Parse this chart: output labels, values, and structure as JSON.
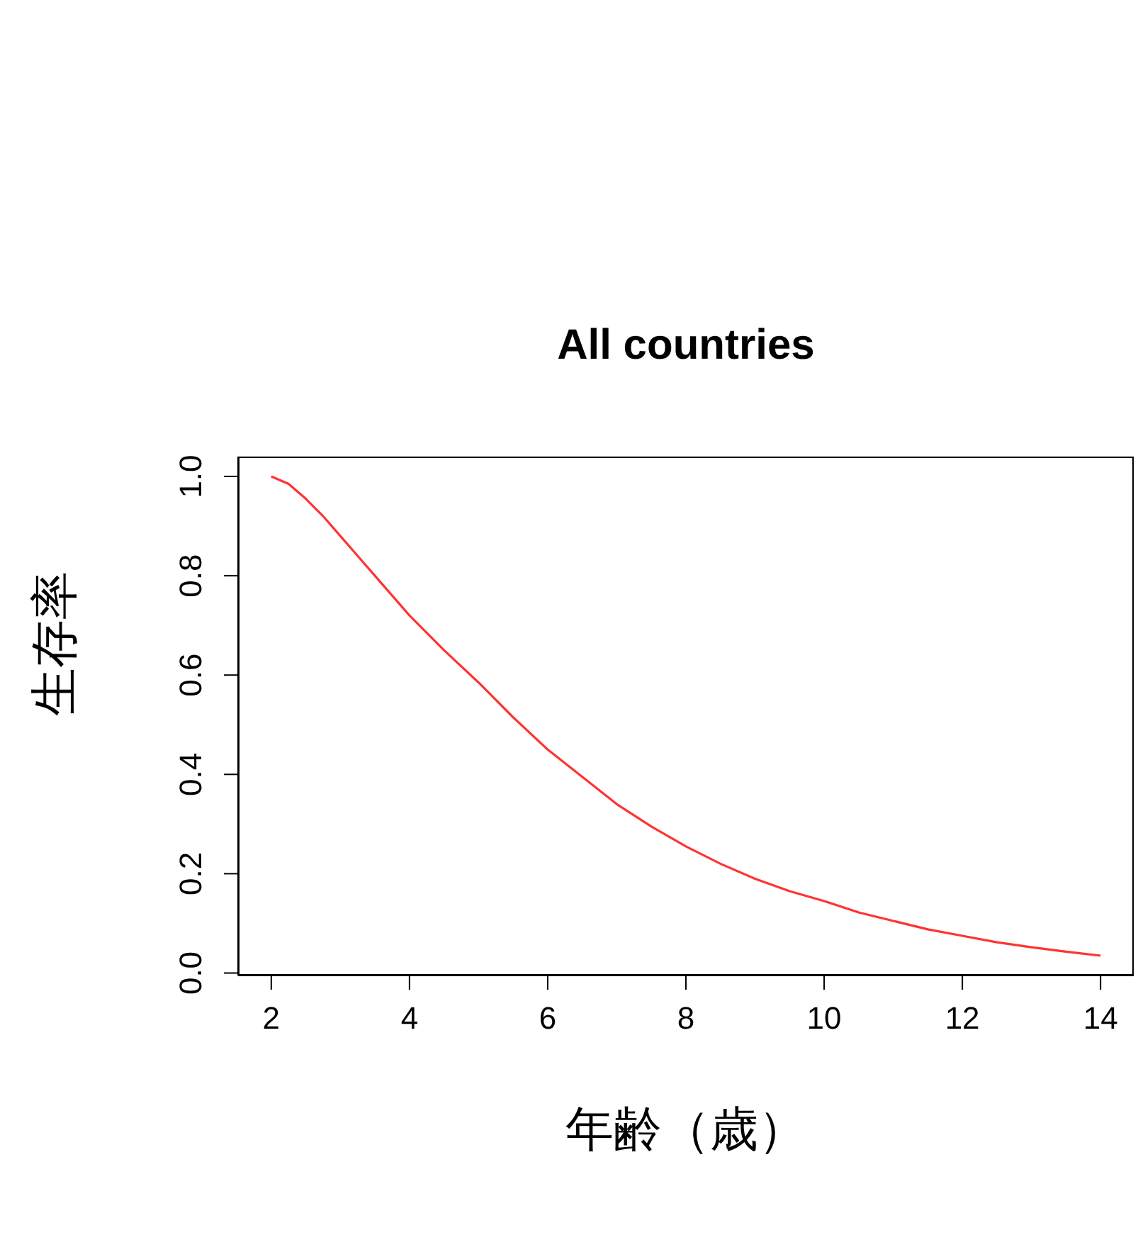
{
  "chart_data": {
    "type": "line",
    "title": "All countries",
    "xlabel": "年齢（歳）",
    "ylabel": "生存率",
    "x": [
      2,
      2.25,
      2.5,
      2.75,
      3,
      3.5,
      4,
      4.5,
      5,
      5.5,
      6,
      6.5,
      7,
      7.5,
      8,
      8.5,
      9,
      9.5,
      10,
      10.5,
      11,
      11.5,
      12,
      12.5,
      13,
      13.5,
      14
    ],
    "series": [
      {
        "color": "#ff3333",
        "values": [
          1.0,
          0.985,
          0.955,
          0.92,
          0.88,
          0.8,
          0.72,
          0.65,
          0.585,
          0.515,
          0.45,
          0.395,
          0.34,
          0.295,
          0.255,
          0.22,
          0.19,
          0.165,
          0.145,
          0.122,
          0.105,
          0.088,
          0.075,
          0.062,
          0.052,
          0.043,
          0.035
        ]
      }
    ],
    "xlim": [
      1.52,
      14.48
    ],
    "ylim": [
      -0.005,
      1.04
    ],
    "xticks": [
      2,
      4,
      6,
      8,
      10,
      12,
      14
    ],
    "yticks": [
      {
        "value": 0,
        "label": "0.0"
      },
      {
        "value": 0.2,
        "label": "0.2"
      },
      {
        "value": 0.4,
        "label": "0.4"
      },
      {
        "value": 0.6,
        "label": "0.6"
      },
      {
        "value": 0.8,
        "label": "0.8"
      },
      {
        "value": 1,
        "label": "1.0"
      }
    ],
    "grid": false,
    "legend": false,
    "marker": "none",
    "line_style": "solid"
  }
}
